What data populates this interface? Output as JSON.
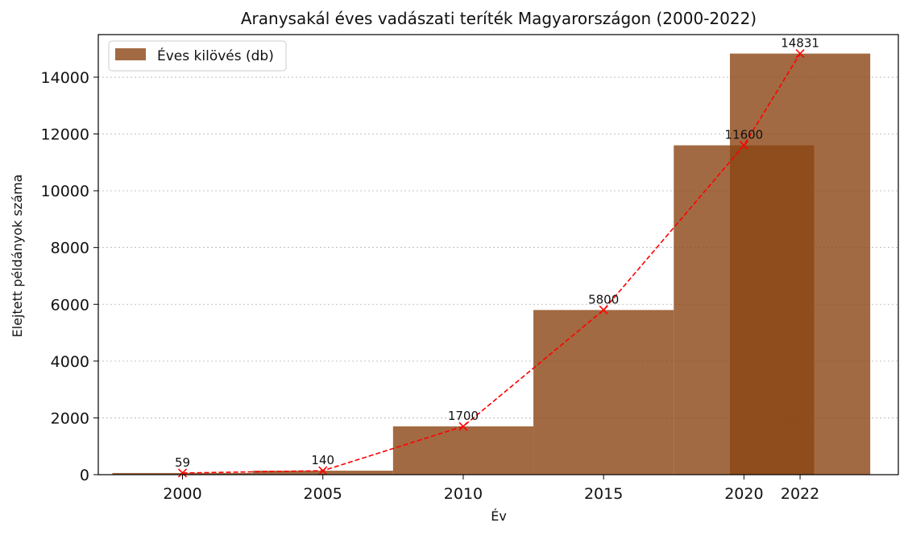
{
  "chart_data": {
    "type": "bar",
    "title": "Aranysakál éves vadászati teríték Magyarországon (2000-2022)",
    "xlabel": "Év",
    "ylabel": "Elejtett példányok száma",
    "categories": [
      "2000",
      "2005",
      "2010",
      "2015",
      "2020",
      "2022"
    ],
    "x": [
      2000,
      2005,
      2010,
      2015,
      2020,
      2022
    ],
    "values": [
      59,
      140,
      1700,
      5800,
      11600,
      14831
    ],
    "data_labels": [
      "59",
      "140",
      "1700",
      "5800",
      "11600",
      "14831"
    ],
    "series": [
      {
        "name": "Éves kilövés (db)",
        "kind": "bar",
        "values": [
          59,
          140,
          1700,
          5800,
          11600,
          14831
        ]
      },
      {
        "kind": "line",
        "style": "dashed",
        "marker": "x",
        "values": [
          59,
          140,
          1700,
          5800,
          11600,
          14831
        ]
      }
    ],
    "xlim": [
      1997.0,
      2025.5
    ],
    "ylim": [
      0,
      15500
    ],
    "yticks": [
      0,
      2000,
      4000,
      6000,
      8000,
      10000,
      12000,
      14000
    ],
    "grid": "y-dotted",
    "legend": "top-left",
    "bar_color": "#8b4513",
    "bar_opacity": 0.8,
    "line_color": "#ff0000"
  }
}
